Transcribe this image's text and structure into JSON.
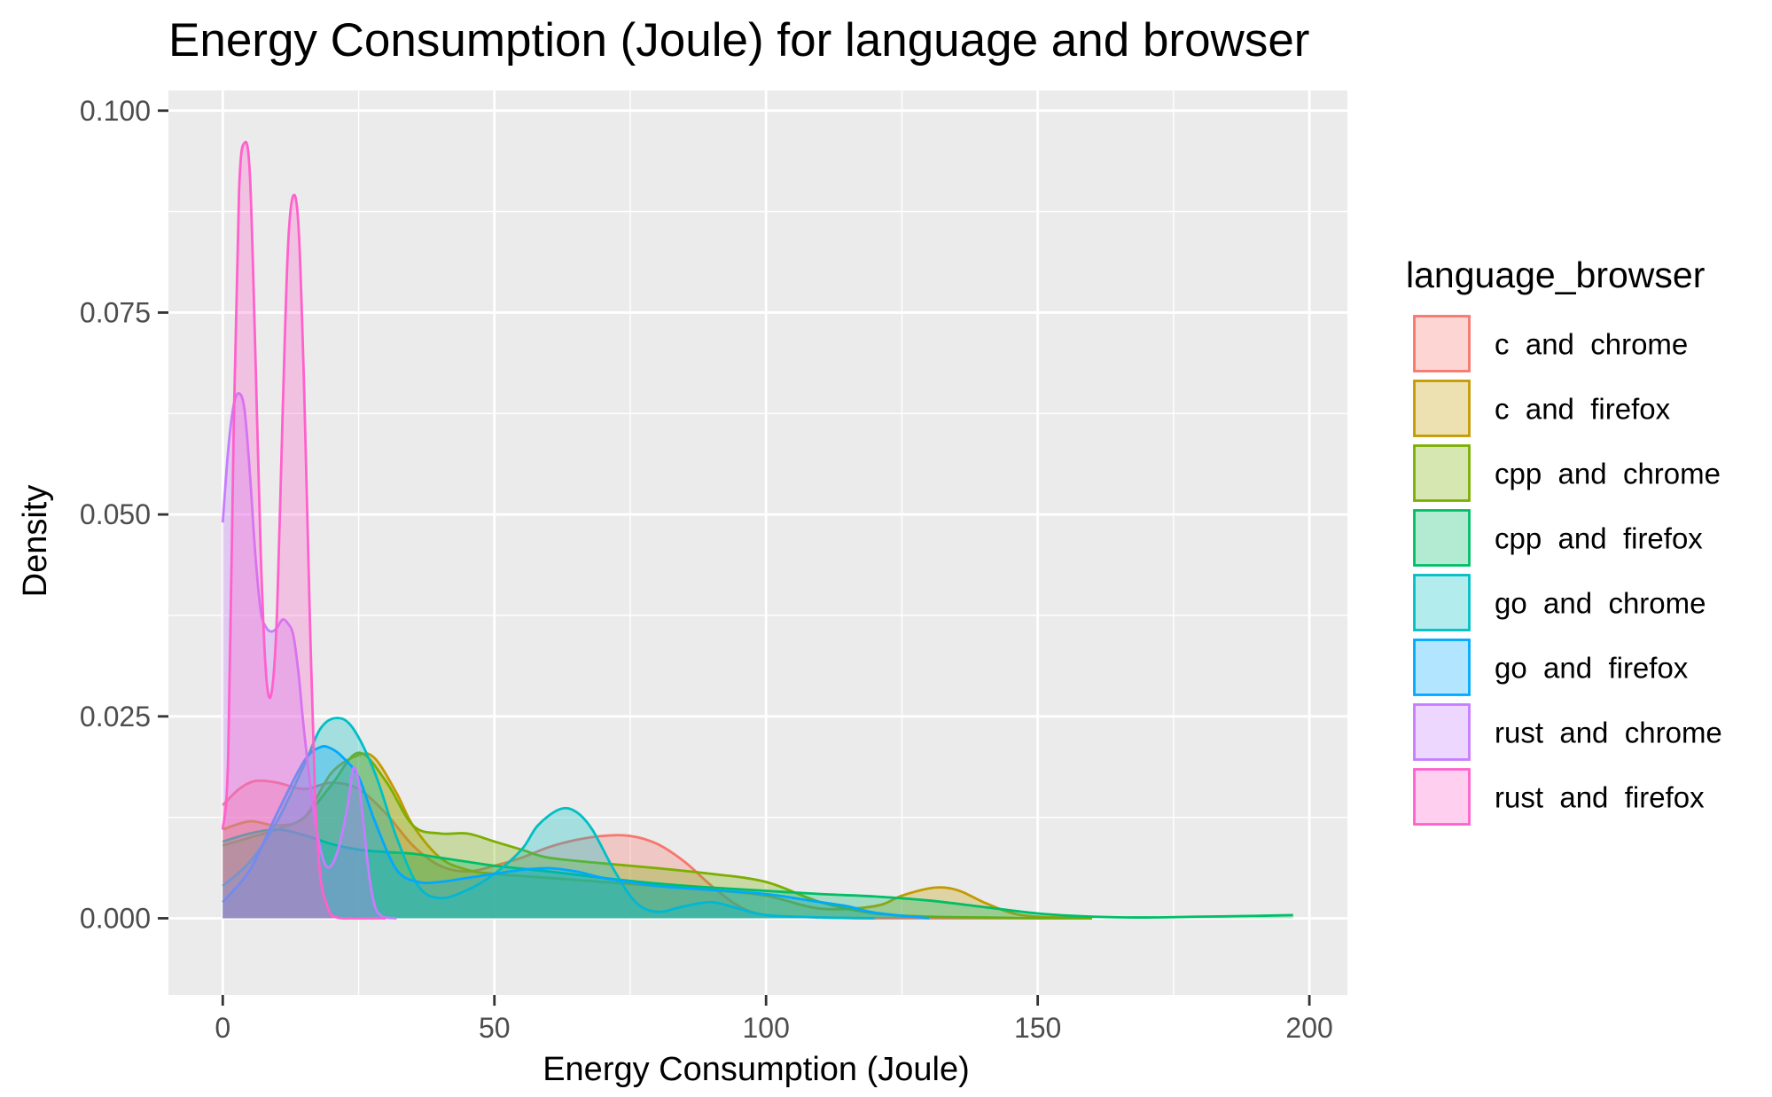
{
  "chart_data": {
    "type": "area",
    "subtype": "density",
    "title": "Energy Consumption (Joule) for language and browser",
    "xlabel": "Energy Consumption (Joule)",
    "ylabel": "Density",
    "xlim": [
      -10,
      207
    ],
    "ylim": [
      -0.0095,
      0.1025
    ],
    "x_ticks": [
      0,
      50,
      100,
      150,
      200
    ],
    "x_tick_labels": [
      "0",
      "50",
      "100",
      "150",
      "200"
    ],
    "y_ticks": [
      0.0,
      0.025,
      0.05,
      0.075,
      0.1
    ],
    "y_tick_labels": [
      "0.000",
      "0.025",
      "0.050",
      "0.075",
      "0.100"
    ],
    "grid": true,
    "panel_background": "#EBEBEB",
    "grid_color": "#FFFFFF",
    "fill_opacity": 0.3,
    "legend": {
      "title": "language_browser",
      "position": "right"
    },
    "series": [
      {
        "name": "c  and  chrome",
        "color": "#F8766D",
        "x": [
          0,
          3,
          6,
          10,
          15,
          20,
          25,
          30,
          35,
          40,
          45,
          50,
          55,
          60,
          65,
          70,
          75,
          80,
          85,
          90,
          95,
          100,
          110,
          120,
          130,
          140,
          150,
          160
        ],
        "y": [
          0.014,
          0.016,
          0.017,
          0.0168,
          0.016,
          0.0168,
          0.016,
          0.013,
          0.009,
          0.0065,
          0.0058,
          0.0065,
          0.0075,
          0.0088,
          0.0097,
          0.0102,
          0.0102,
          0.0092,
          0.007,
          0.004,
          0.0015,
          0.0004,
          0.0001,
          0.0,
          0.0,
          0.0,
          0.0,
          0.0
        ]
      },
      {
        "name": "c  and  firefox",
        "color": "#C49A00",
        "x": [
          0,
          5,
          10,
          15,
          20,
          25,
          28,
          32,
          35,
          40,
          45,
          50,
          60,
          70,
          80,
          90,
          100,
          110,
          120,
          125,
          130,
          133,
          136,
          140,
          145,
          150,
          160
        ],
        "y": [
          0.011,
          0.012,
          0.0115,
          0.0125,
          0.018,
          0.0202,
          0.0198,
          0.0155,
          0.0115,
          0.0075,
          0.006,
          0.0055,
          0.005,
          0.0045,
          0.004,
          0.0035,
          0.0028,
          0.0012,
          0.0015,
          0.0028,
          0.0037,
          0.0038,
          0.0033,
          0.002,
          0.0007,
          0.0002,
          0.0
        ]
      },
      {
        "name": "cpp  and  chrome",
        "color": "#7CAE00",
        "x": [
          0,
          5,
          10,
          15,
          20,
          25,
          30,
          35,
          40,
          45,
          50,
          55,
          60,
          70,
          80,
          90,
          100,
          110,
          120,
          130,
          140,
          150,
          160
        ],
        "y": [
          0.009,
          0.01,
          0.011,
          0.0125,
          0.0165,
          0.0205,
          0.017,
          0.0115,
          0.0105,
          0.0105,
          0.0095,
          0.0085,
          0.0075,
          0.0068,
          0.0062,
          0.0055,
          0.0045,
          0.002,
          0.0006,
          0.0002,
          0.0001,
          0.0,
          0.0
        ]
      },
      {
        "name": "cpp  and  firefox",
        "color": "#00BE67",
        "x": [
          0,
          5,
          10,
          15,
          20,
          25,
          30,
          35,
          40,
          45,
          50,
          60,
          70,
          80,
          90,
          100,
          110,
          120,
          130,
          140,
          150,
          160,
          170,
          180,
          190,
          197
        ],
        "y": [
          0.0095,
          0.0105,
          0.011,
          0.0103,
          0.0092,
          0.0085,
          0.0082,
          0.008,
          0.0075,
          0.007,
          0.0065,
          0.0058,
          0.005,
          0.0043,
          0.0038,
          0.0034,
          0.003,
          0.0027,
          0.0022,
          0.0014,
          0.0006,
          0.0002,
          0.0001,
          0.0002,
          0.0003,
          0.0004
        ]
      },
      {
        "name": "go  and  chrome",
        "color": "#00BFC4",
        "x": [
          0,
          5,
          10,
          15,
          18,
          21,
          24,
          28,
          32,
          36,
          40,
          45,
          50,
          55,
          58,
          62,
          65,
          68,
          72,
          76,
          80,
          85,
          90,
          95,
          100,
          110,
          120
        ],
        "y": [
          0.004,
          0.007,
          0.012,
          0.019,
          0.0235,
          0.0248,
          0.0235,
          0.018,
          0.01,
          0.004,
          0.0025,
          0.0035,
          0.0055,
          0.0085,
          0.0115,
          0.0135,
          0.0132,
          0.011,
          0.006,
          0.002,
          0.0008,
          0.0015,
          0.002,
          0.0012,
          0.0004,
          0.0001,
          0.0
        ]
      },
      {
        "name": "go  and  firefox",
        "color": "#00A9FF",
        "x": [
          0,
          5,
          10,
          15,
          18,
          20,
          22,
          25,
          28,
          32,
          36,
          40,
          45,
          50,
          55,
          60,
          65,
          70,
          75,
          80,
          90,
          100,
          110,
          115,
          120,
          130
        ],
        "y": [
          0.002,
          0.006,
          0.013,
          0.0195,
          0.0212,
          0.021,
          0.02,
          0.0175,
          0.012,
          0.006,
          0.0045,
          0.0045,
          0.005,
          0.0055,
          0.006,
          0.0062,
          0.0058,
          0.005,
          0.0045,
          0.004,
          0.0035,
          0.003,
          0.002,
          0.0015,
          0.0007,
          0.0
        ]
      },
      {
        "name": "rust  and  chrome",
        "color": "#C77CFF",
        "x": [
          0,
          1,
          2,
          3,
          4,
          5,
          6,
          7,
          8,
          9,
          10,
          11,
          12,
          13,
          14,
          15,
          17,
          19,
          21,
          23,
          24,
          25,
          26,
          27,
          28,
          29,
          30,
          32
        ],
        "y": [
          0.049,
          0.058,
          0.0635,
          0.065,
          0.063,
          0.055,
          0.045,
          0.038,
          0.036,
          0.0355,
          0.036,
          0.037,
          0.0365,
          0.035,
          0.03,
          0.023,
          0.012,
          0.0065,
          0.008,
          0.014,
          0.0185,
          0.017,
          0.011,
          0.005,
          0.0015,
          0.0004,
          0.0001,
          0.0
        ]
      },
      {
        "name": "rust  and  firefox",
        "color": "#FF61CC",
        "x": [
          0,
          1,
          2,
          3,
          4,
          5,
          6,
          7,
          8,
          9,
          10,
          11,
          12,
          13,
          14,
          15,
          16,
          17,
          18,
          19,
          20,
          21,
          22,
          25,
          30
        ],
        "y": [
          0.011,
          0.02,
          0.06,
          0.09,
          0.096,
          0.092,
          0.07,
          0.045,
          0.03,
          0.028,
          0.038,
          0.062,
          0.083,
          0.0895,
          0.085,
          0.065,
          0.038,
          0.015,
          0.005,
          0.002,
          0.0004,
          0.0001,
          0.0,
          0.0,
          0.0
        ]
      }
    ]
  }
}
